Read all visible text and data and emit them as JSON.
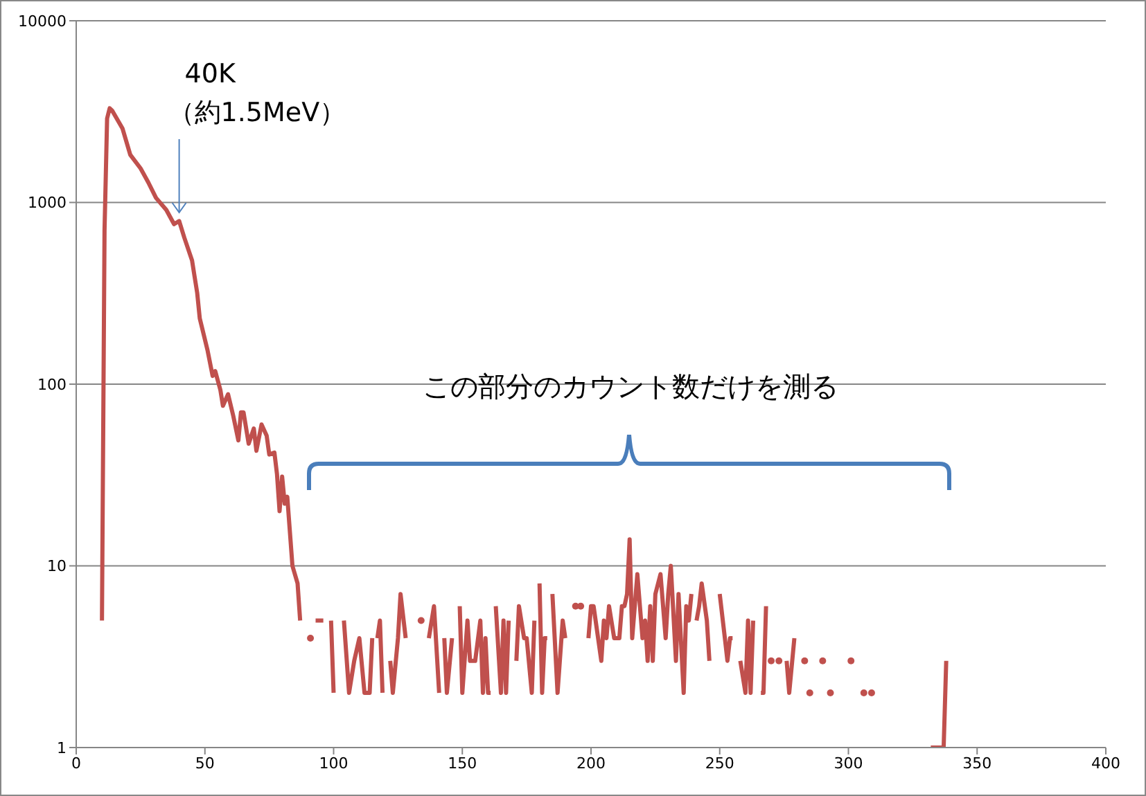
{
  "chart_data": {
    "type": "line",
    "x": [
      10,
      11,
      12,
      13,
      14,
      18,
      21,
      25,
      28,
      31,
      35,
      38,
      40,
      42,
      45,
      46,
      47,
      48,
      51,
      53,
      54,
      56,
      57,
      59,
      61,
      63,
      64,
      65,
      67,
      69,
      70,
      72,
      74,
      75,
      77,
      78,
      79,
      80,
      81,
      82,
      84,
      86,
      87,
      89,
      91,
      92,
      93,
      96,
      97,
      99,
      100,
      102,
      104,
      106,
      108,
      110,
      112,
      114,
      115,
      116,
      117,
      118,
      119,
      120,
      122,
      123,
      125,
      126,
      128,
      130,
      134,
      136,
      137,
      139,
      141,
      142,
      143,
      144,
      146,
      148,
      149,
      150,
      152,
      153,
      155,
      157,
      158,
      159,
      160,
      161,
      162,
      163,
      165,
      166,
      167,
      168,
      170,
      171,
      172,
      174,
      175,
      177,
      178,
      179,
      180,
      181,
      182,
      183,
      184,
      185,
      187,
      189,
      190,
      191,
      194,
      195,
      196,
      197,
      199,
      200,
      201,
      204,
      205,
      206,
      207,
      209,
      211,
      212,
      213,
      214,
      215,
      216,
      218,
      219,
      220,
      221,
      222,
      223,
      224,
      225,
      227,
      229,
      230,
      231,
      233,
      234,
      236,
      237,
      238,
      239,
      240,
      241,
      242,
      243,
      245,
      246,
      248,
      250,
      252,
      253,
      254,
      255,
      257,
      258,
      260,
      261,
      262,
      263,
      264,
      266,
      267,
      268,
      269,
      270,
      271,
      273,
      274,
      276,
      277,
      279,
      281,
      283,
      284,
      285,
      286,
      290,
      292,
      293,
      294,
      301,
      303,
      306,
      308,
      309,
      312,
      332,
      337,
      338
    ],
    "series": [
      {
        "color": "#c0504d",
        "values": [
          5,
          700,
          2900,
          3300,
          3200,
          2550,
          1830,
          1540,
          1290,
          1060,
          910,
          760,
          790,
          640,
          480,
          390,
          318,
          230,
          154,
          111,
          118,
          93,
          76,
          88,
          67,
          49,
          70,
          70,
          47,
          57,
          43,
          60,
          52,
          41,
          42,
          32,
          20,
          31,
          22,
          24,
          10,
          8,
          5,
          null,
          4,
          null,
          5,
          5,
          null,
          5,
          2,
          null,
          5,
          2,
          3,
          4,
          2,
          2,
          4,
          null,
          4,
          5,
          2,
          null,
          3,
          2,
          4,
          7,
          4,
          null,
          5,
          null,
          4,
          6,
          2,
          null,
          4,
          2,
          4,
          null,
          6,
          2,
          5,
          3,
          3,
          5,
          2,
          4,
          2,
          2,
          null,
          6,
          2,
          5,
          2,
          5,
          null,
          3,
          6,
          4,
          4,
          2,
          5,
          null,
          8,
          2,
          4,
          4,
          null,
          7,
          2,
          5,
          4,
          null,
          6,
          null,
          6,
          null,
          4,
          6,
          6,
          3,
          5,
          4,
          6,
          4,
          4,
          6,
          6,
          7,
          14,
          4,
          9,
          6,
          4,
          5,
          3,
          6,
          3,
          7,
          9,
          4,
          7,
          10,
          3,
          7,
          2,
          6,
          5,
          7,
          null,
          5,
          6,
          8,
          5,
          3,
          null,
          7,
          4,
          3,
          4,
          4,
          null,
          3,
          2,
          5,
          2,
          5,
          null,
          2,
          2,
          6,
          null,
          3,
          null,
          3,
          null,
          3,
          2,
          4,
          null,
          3,
          null,
          2,
          null,
          3,
          null,
          2,
          null,
          3,
          null,
          2,
          null,
          2,
          null,
          1,
          1,
          3
        ]
      }
    ],
    "xlim": [
      0,
      400
    ],
    "xticks": [
      0,
      50,
      100,
      150,
      200,
      250,
      300,
      350,
      400
    ],
    "ylim": [
      1,
      10000
    ],
    "yticks": [
      1,
      10,
      100,
      1000,
      10000
    ],
    "log": "y",
    "grid": "y",
    "line_style": "solid",
    "annotations": [
      {
        "text": "40K\n（約1.5MeV）",
        "x": 40,
        "y": 850
      },
      "この部分のカウント数だけを測る"
    ]
  }
}
